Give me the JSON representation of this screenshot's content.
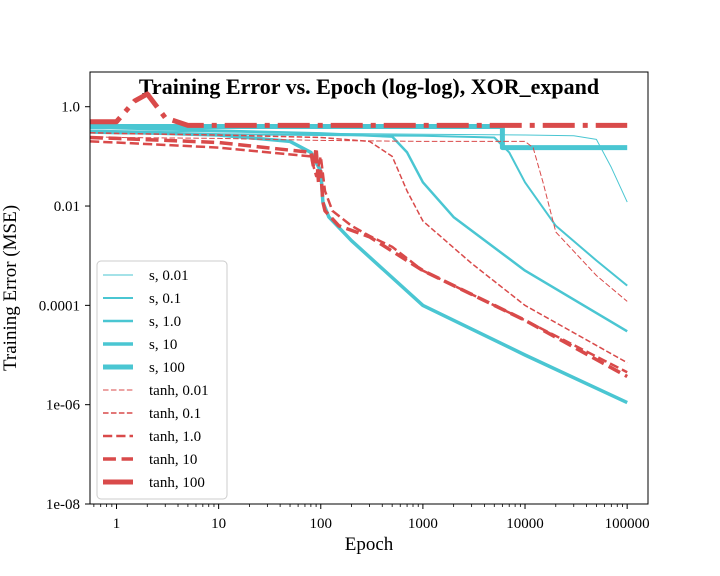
{
  "chart_data": {
    "type": "line",
    "title": "Training Error vs. Epoch (log-log), XOR_expand",
    "xlabel": "Epoch",
    "ylabel": "Training Error (MSE)",
    "xscale": "log",
    "yscale": "log",
    "xlim": [
      0.55,
      160000
    ],
    "ylim": [
      1e-08,
      5
    ],
    "xticks": [
      {
        "value": 1,
        "label": "1"
      },
      {
        "value": 10,
        "label": "10"
      },
      {
        "value": 100,
        "label": "100"
      },
      {
        "value": 1000,
        "label": "1000"
      },
      {
        "value": 10000,
        "label": "10000"
      },
      {
        "value": 100000,
        "label": "100000"
      }
    ],
    "yticks": [
      {
        "value": 1e-08,
        "label": "1e-08"
      },
      {
        "value": 1e-06,
        "label": "1e-06"
      },
      {
        "value": 0.0001,
        "label": "0.0001"
      },
      {
        "value": 0.01,
        "label": "0.01"
      },
      {
        "value": 1,
        "label": "1.0"
      }
    ],
    "legend_position": "lower-left",
    "colors": {
      "s": "#4ac6d2",
      "tanh": "#d94a4a"
    },
    "series": [
      {
        "name": "s, 0.01",
        "family": "s",
        "style": "solid",
        "width": 1,
        "x": [
          0.55,
          1,
          10,
          100,
          1000,
          10000,
          30000,
          50000,
          70000,
          100000
        ],
        "y": [
          0.34,
          0.33,
          0.31,
          0.29,
          0.28,
          0.27,
          0.26,
          0.22,
          0.06,
          0.012
        ]
      },
      {
        "name": "s, 0.1",
        "family": "s",
        "style": "solid",
        "width": 2,
        "x": [
          0.55,
          1,
          10,
          100,
          1000,
          5000,
          7000,
          10000,
          20000,
          50000,
          100000
        ],
        "y": [
          0.3,
          0.29,
          0.28,
          0.27,
          0.26,
          0.24,
          0.12,
          0.03,
          0.004,
          0.0008,
          0.00025
        ]
      },
      {
        "name": "s, 1.0",
        "family": "s",
        "style": "solid",
        "width": 2.5,
        "x": [
          0.55,
          1,
          10,
          100,
          500,
          700,
          1000,
          2000,
          10000,
          100000
        ],
        "y": [
          0.38,
          0.37,
          0.33,
          0.29,
          0.25,
          0.12,
          0.03,
          0.006,
          0.0005,
          3e-05
        ]
      },
      {
        "name": "s, 10",
        "family": "s",
        "style": "solid",
        "width": 3.5,
        "x": [
          0.55,
          1,
          10,
          50,
          80,
          100,
          105,
          120,
          200,
          1000,
          10000,
          100000
        ],
        "y": [
          0.32,
          0.31,
          0.27,
          0.2,
          0.12,
          0.05,
          0.012,
          0.006,
          0.002,
          0.0001,
          1e-05,
          1.1e-06
        ]
      },
      {
        "name": "s, 100",
        "family": "s",
        "style": "solid",
        "width": 5,
        "x": [
          0.55,
          1,
          10,
          100,
          1000,
          6000,
          6000,
          6500,
          10000,
          100000
        ],
        "y": [
          0.4,
          0.4,
          0.4,
          0.4,
          0.4,
          0.4,
          0.15,
          0.15,
          0.15,
          0.15
        ]
      },
      {
        "name": "tanh, 0.01",
        "family": "tanh",
        "style": "dashed",
        "width": 1,
        "x": [
          0.55,
          1,
          10,
          100,
          1000,
          10000,
          12000,
          15000,
          20000,
          50000,
          100000
        ],
        "y": [
          0.25,
          0.24,
          0.23,
          0.21,
          0.2,
          0.2,
          0.15,
          0.03,
          0.003,
          0.0004,
          0.00012
        ]
      },
      {
        "name": "tanh, 0.1",
        "family": "tanh",
        "style": "dashed",
        "width": 1.5,
        "x": [
          0.55,
          1,
          10,
          100,
          300,
          500,
          700,
          1000,
          3000,
          10000,
          100000
        ],
        "y": [
          0.3,
          0.29,
          0.27,
          0.24,
          0.2,
          0.1,
          0.02,
          0.005,
          0.0007,
          0.0001,
          7e-06
        ]
      },
      {
        "name": "tanh, 1.0",
        "family": "tanh",
        "style": "dashed",
        "width": 2.5,
        "x": [
          0.55,
          1,
          10,
          80,
          90,
          100,
          110,
          130,
          200,
          300,
          500,
          1000,
          10000,
          100000
        ],
        "y": [
          0.2,
          0.19,
          0.15,
          0.1,
          0.04,
          0.1,
          0.02,
          0.008,
          0.004,
          0.0025,
          0.0015,
          0.0005,
          5e-05,
          4.5e-06
        ]
      },
      {
        "name": "tanh, 10",
        "family": "tanh",
        "style": "dashed",
        "width": 3.5,
        "x": [
          0.55,
          1,
          10,
          80,
          85,
          90,
          95,
          100,
          105,
          110,
          150,
          300,
          1000,
          10000,
          100000
        ],
        "y": [
          0.24,
          0.23,
          0.19,
          0.12,
          0.06,
          0.15,
          0.03,
          0.05,
          0.012,
          0.008,
          0.004,
          0.0024,
          0.0005,
          5e-05,
          3.7e-06
        ]
      },
      {
        "name": "tanh, 100",
        "family": "tanh",
        "style": "dashdot",
        "width": 5,
        "x": [
          0.55,
          1,
          1.5,
          2,
          3,
          5,
          10,
          100,
          1000,
          10000,
          100000
        ],
        "y": [
          0.5,
          0.5,
          1.3,
          1.8,
          0.6,
          0.42,
          0.42,
          0.42,
          0.42,
          0.42,
          0.42
        ]
      }
    ]
  }
}
